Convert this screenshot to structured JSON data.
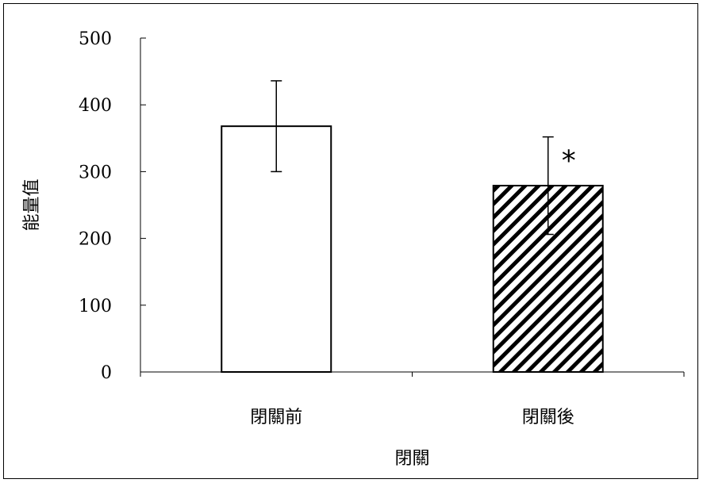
{
  "chart_data": {
    "type": "bar",
    "title": "",
    "xlabel": "閉關",
    "ylabel": "能量值",
    "categories": [
      "閉關前",
      "閉關後"
    ],
    "values": [
      368,
      279
    ],
    "errors": [
      68,
      73
    ],
    "ylim": [
      0,
      500
    ],
    "yticks": [
      0,
      100,
      200,
      300,
      400,
      500
    ],
    "grid": false,
    "legend": "none",
    "bar_styles": [
      "white-fill",
      "diagonal-hatch"
    ],
    "annotations": [
      {
        "category": "閉關後",
        "text": "*"
      }
    ]
  },
  "colors": {
    "bar_outline": "#000000",
    "bar_fill": "#ffffff",
    "hatch": "#000000"
  }
}
